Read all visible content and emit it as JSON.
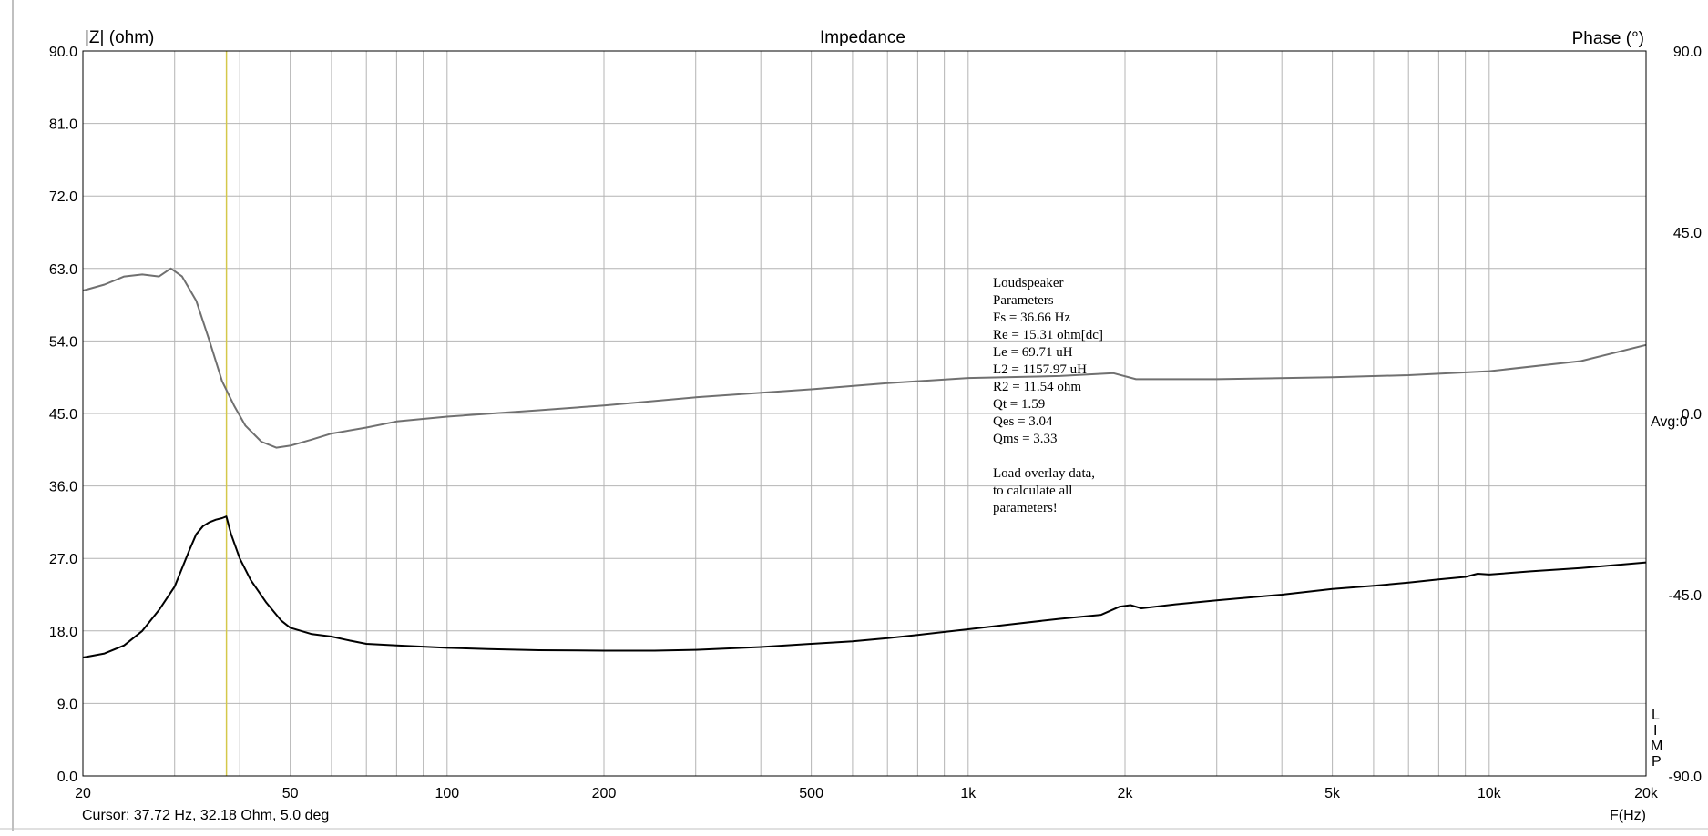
{
  "chart_data": {
    "type": "line",
    "title": "Impedance",
    "left_axis_label": "|Z| (ohm)",
    "right_axis_label": "Phase (°)",
    "x_axis_label": "F(Hz)",
    "x_scale": "log",
    "xlim": [
      20,
      20000
    ],
    "ylim_left": [
      0,
      90
    ],
    "ylim_right": [
      -90,
      90
    ],
    "grid": true,
    "left_ticks": [
      "0.0",
      "9.0",
      "18.0",
      "27.0",
      "36.0",
      "45.0",
      "54.0",
      "63.0",
      "72.0",
      "81.0",
      "90.0"
    ],
    "right_ticks": [
      {
        "value": 90,
        "label": "90.0"
      },
      {
        "value": 45,
        "label": "45.0"
      },
      {
        "value": 0,
        "label": "0.0"
      },
      {
        "value": -45,
        "label": "-45.0"
      },
      {
        "value": -90,
        "label": "-90.0"
      }
    ],
    "x_ticks": [
      {
        "value": 20,
        "label": "20"
      },
      {
        "value": 50,
        "label": "50"
      },
      {
        "value": 100,
        "label": "100"
      },
      {
        "value": 200,
        "label": "200"
      },
      {
        "value": 500,
        "label": "500"
      },
      {
        "value": 1000,
        "label": "1k"
      },
      {
        "value": 2000,
        "label": "2k"
      },
      {
        "value": 5000,
        "label": "5k"
      },
      {
        "value": 10000,
        "label": "10k"
      },
      {
        "value": 20000,
        "label": "20k"
      }
    ],
    "avg_label": "Avg:0",
    "side_letters": [
      "L",
      "I",
      "M",
      "P"
    ],
    "cursor_marker_hz": 37.72,
    "cursor_color": "#d4c84a",
    "series": [
      {
        "axis": "left",
        "color": "#000000",
        "points": [
          [
            20,
            14.7
          ],
          [
            22,
            15.2
          ],
          [
            24,
            16.2
          ],
          [
            26,
            18.0
          ],
          [
            28,
            20.6
          ],
          [
            30,
            23.5
          ],
          [
            32,
            28.0
          ],
          [
            33,
            30.0
          ],
          [
            34,
            31.0
          ],
          [
            35,
            31.5
          ],
          [
            36,
            31.8
          ],
          [
            37,
            32.0
          ],
          [
            37.7,
            32.2
          ],
          [
            38.5,
            30.0
          ],
          [
            40,
            27.0
          ],
          [
            42,
            24.3
          ],
          [
            45,
            21.5
          ],
          [
            48,
            19.3
          ],
          [
            50,
            18.4
          ],
          [
            55,
            17.6
          ],
          [
            60,
            17.3
          ],
          [
            65,
            16.8
          ],
          [
            70,
            16.4
          ],
          [
            80,
            16.2
          ],
          [
            100,
            15.9
          ],
          [
            120,
            15.75
          ],
          [
            150,
            15.6
          ],
          [
            200,
            15.55
          ],
          [
            250,
            15.55
          ],
          [
            300,
            15.65
          ],
          [
            400,
            16.0
          ],
          [
            500,
            16.4
          ],
          [
            600,
            16.7
          ],
          [
            700,
            17.1
          ],
          [
            800,
            17.5
          ],
          [
            1000,
            18.2
          ],
          [
            1200,
            18.8
          ],
          [
            1500,
            19.5
          ],
          [
            1800,
            20.0
          ],
          [
            1950,
            21.0
          ],
          [
            2050,
            21.2
          ],
          [
            2150,
            20.8
          ],
          [
            2500,
            21.3
          ],
          [
            3000,
            21.8
          ],
          [
            4000,
            22.5
          ],
          [
            5000,
            23.2
          ],
          [
            6000,
            23.6
          ],
          [
            7000,
            24.0
          ],
          [
            8000,
            24.4
          ],
          [
            9000,
            24.7
          ],
          [
            9500,
            25.1
          ],
          [
            10000,
            25.0
          ],
          [
            12000,
            25.4
          ],
          [
            15000,
            25.8
          ],
          [
            20000,
            26.5
          ]
        ]
      },
      {
        "axis": "right",
        "color": "#707070",
        "points": [
          [
            20,
            30.5
          ],
          [
            22,
            32
          ],
          [
            24,
            34
          ],
          [
            26,
            34.5
          ],
          [
            28,
            34
          ],
          [
            29.5,
            36
          ],
          [
            31,
            34
          ],
          [
            33,
            28
          ],
          [
            35,
            18
          ],
          [
            37,
            8
          ],
          [
            39,
            2
          ],
          [
            41,
            -3
          ],
          [
            44,
            -7
          ],
          [
            47,
            -8.5
          ],
          [
            50,
            -8
          ],
          [
            55,
            -6.5
          ],
          [
            60,
            -5
          ],
          [
            70,
            -3.5
          ],
          [
            80,
            -2
          ],
          [
            100,
            -0.8
          ],
          [
            150,
            0.8
          ],
          [
            200,
            2
          ],
          [
            300,
            4
          ],
          [
            500,
            6
          ],
          [
            700,
            7.5
          ],
          [
            1000,
            8.8
          ],
          [
            1500,
            9.3
          ],
          [
            1900,
            10
          ],
          [
            2100,
            8.5
          ],
          [
            3000,
            8.5
          ],
          [
            5000,
            9
          ],
          [
            7000,
            9.5
          ],
          [
            10000,
            10.5
          ],
          [
            15000,
            13
          ],
          [
            20000,
            17
          ]
        ]
      }
    ],
    "parameters": [
      "Loudspeaker",
      "Parameters",
      "Fs  = 36.66 Hz",
      "Re  = 15.31 ohm[dc]",
      "Le  = 69.71 uH",
      "L2  = 1157.97 uH",
      "R2  = 11.54 ohm",
      "Qt  = 1.59",
      "Qes = 3.04",
      "Qms = 3.33",
      "",
      "Load overlay data,",
      "to calculate all",
      "parameters!"
    ],
    "cursor_readout": "Cursor: 37.72 Hz, 32.18 Ohm, 5.0 deg"
  }
}
